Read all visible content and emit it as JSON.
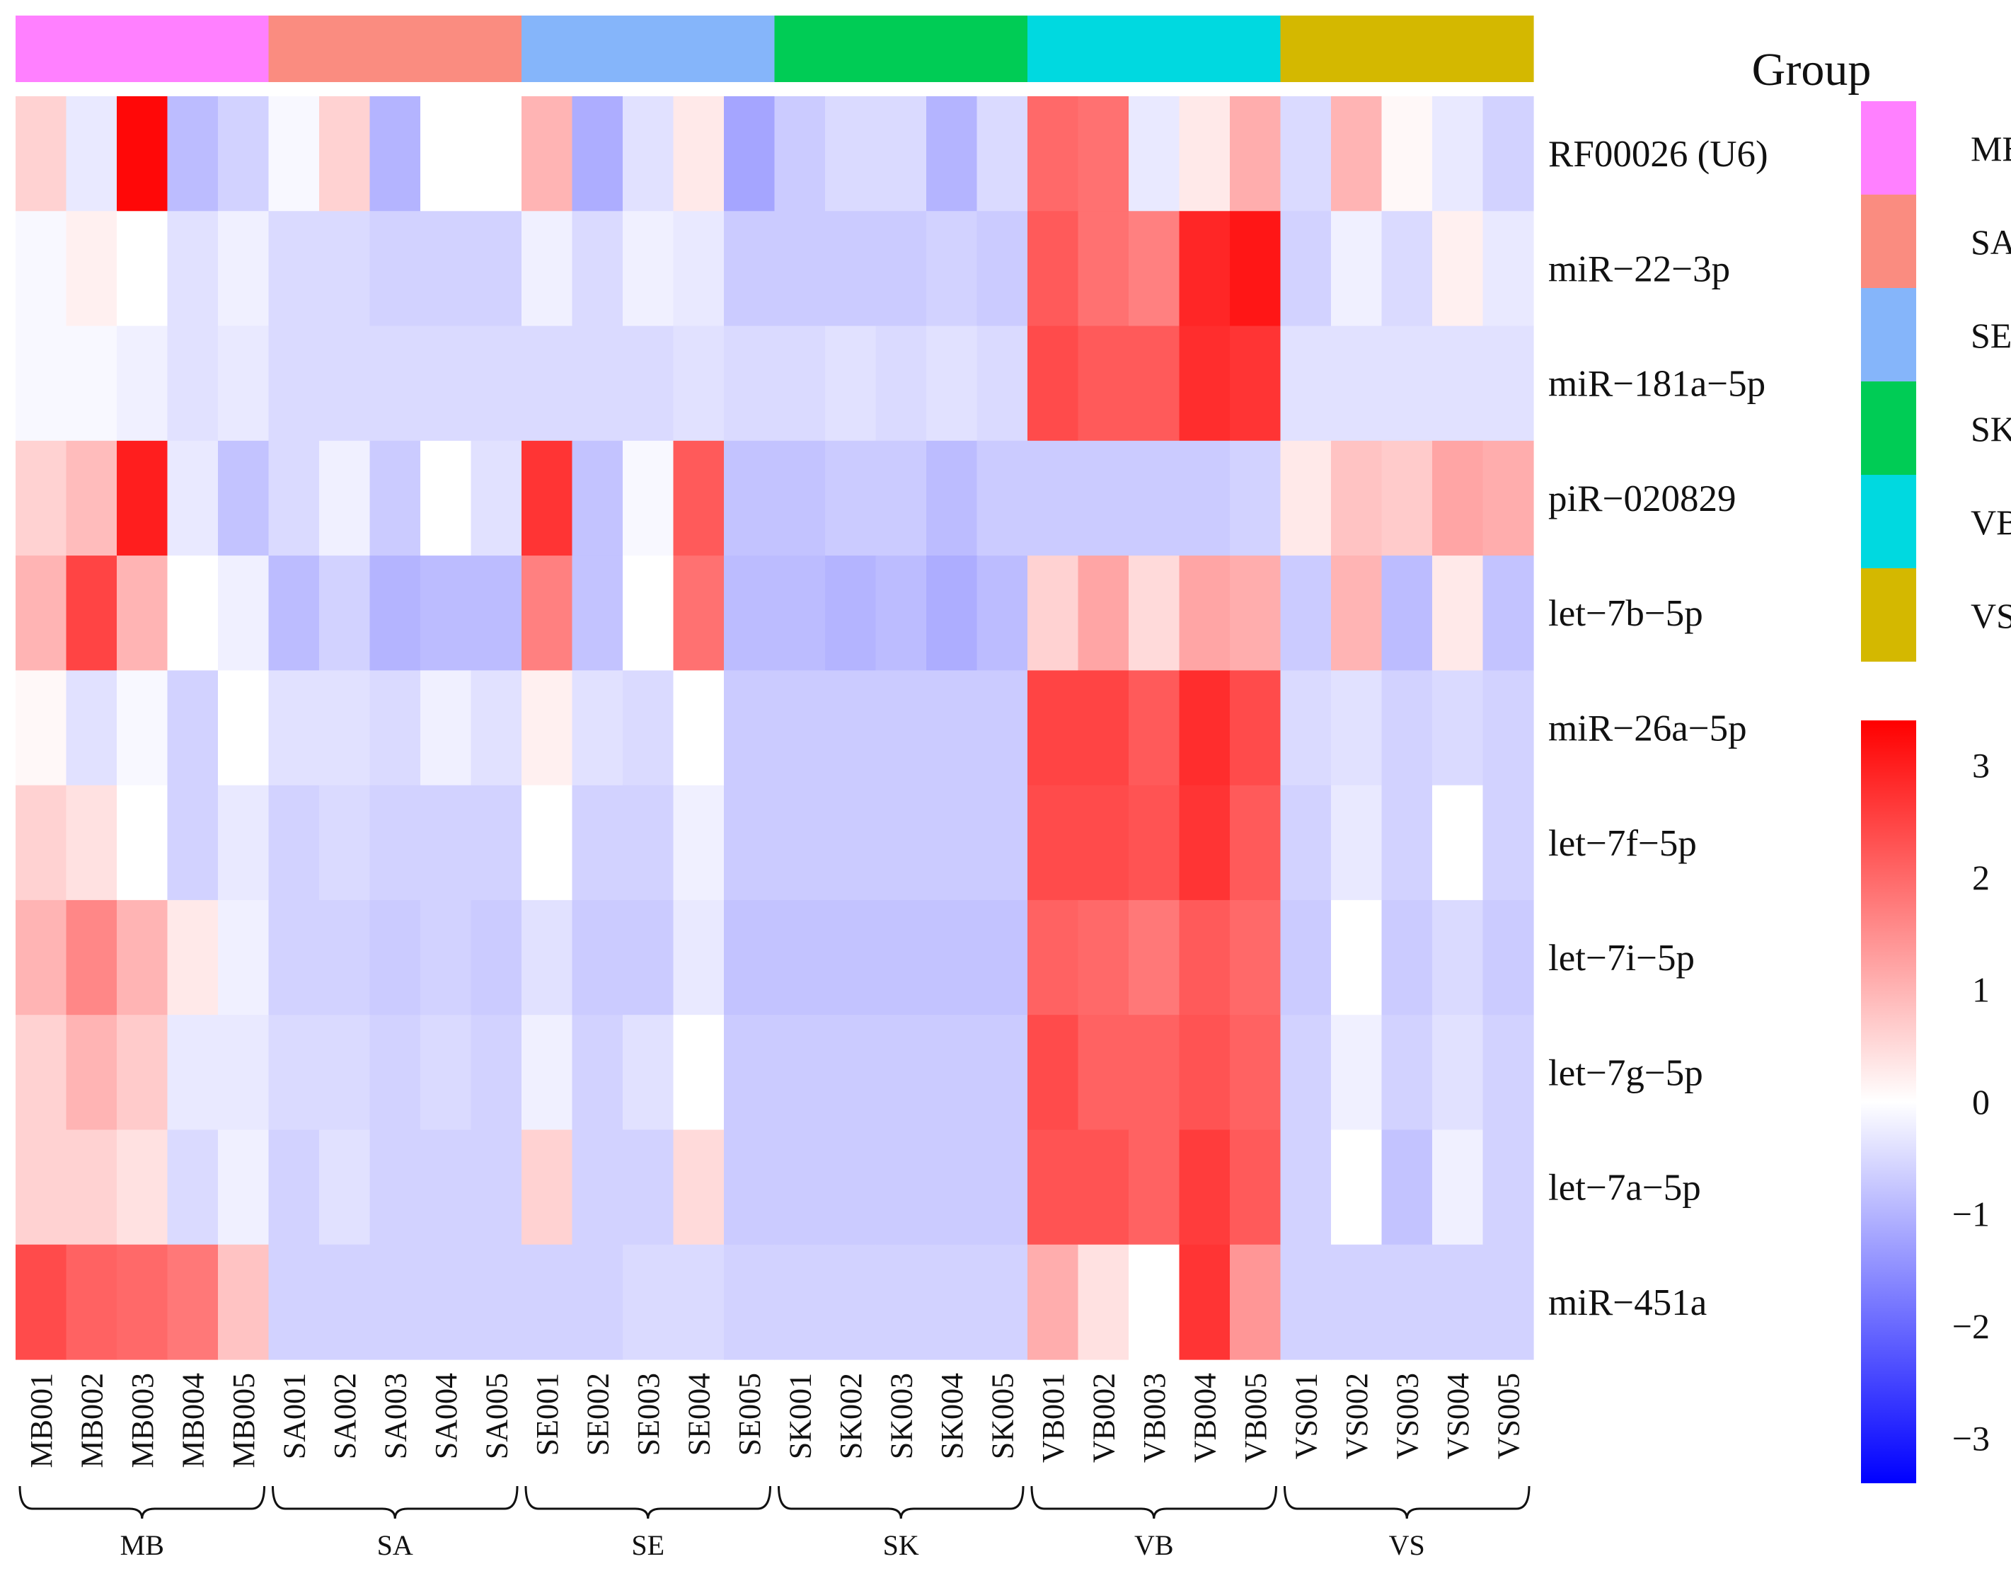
{
  "chart_data": {
    "type": "heatmap",
    "title": "",
    "rows": [
      "RF00026 (U6)",
      "miR−22−3p",
      "miR−181a−5p",
      "piR−020829",
      "let−7b−5p",
      "miR−26a−5p",
      "let−7f−5p",
      "let−7i−5p",
      "let−7g−5p",
      "let−7a−5p",
      "miR−451a"
    ],
    "columns": [
      "MB001",
      "MB002",
      "MB003",
      "MB004",
      "MB005",
      "SA001",
      "SA002",
      "SA003",
      "SA004",
      "SA005",
      "SE001",
      "SE002",
      "SE003",
      "SE004",
      "SE005",
      "SK001",
      "SK002",
      "SK003",
      "SK004",
      "SK005",
      "VB001",
      "VB002",
      "VB003",
      "VB004",
      "VB005",
      "VS001",
      "VS002",
      "VS003",
      "VS004",
      "VS005"
    ],
    "column_groups": [
      "MB",
      "MB",
      "MB",
      "MB",
      "MB",
      "SA",
      "SA",
      "SA",
      "SA",
      "SA",
      "SE",
      "SE",
      "SE",
      "SE",
      "SE",
      "SK",
      "SK",
      "SK",
      "SK",
      "SK",
      "VB",
      "VB",
      "VB",
      "VB",
      "VB",
      "VS",
      "VS",
      "VS",
      "VS",
      "VS"
    ],
    "values": [
      [
        0.6,
        -0.3,
        3.3,
        -0.9,
        -0.6,
        -0.1,
        0.6,
        -1.0,
        0.0,
        0.0,
        1.0,
        -1.1,
        -0.4,
        0.3,
        -1.2,
        -0.7,
        -0.5,
        -0.5,
        -1.0,
        -0.5,
        2.0,
        1.9,
        -0.3,
        0.3,
        1.1,
        -0.5,
        1.0,
        0.1,
        -0.3,
        -0.6
      ],
      [
        -0.1,
        0.2,
        0.0,
        -0.4,
        -0.2,
        -0.5,
        -0.5,
        -0.6,
        -0.6,
        -0.6,
        -0.2,
        -0.5,
        -0.2,
        -0.3,
        -0.7,
        -0.7,
        -0.7,
        -0.7,
        -0.6,
        -0.7,
        2.2,
        1.9,
        1.7,
        2.9,
        3.1,
        -0.6,
        -0.2,
        -0.5,
        0.2,
        -0.3
      ],
      [
        -0.1,
        -0.1,
        -0.2,
        -0.4,
        -0.3,
        -0.5,
        -0.5,
        -0.5,
        -0.5,
        -0.5,
        -0.5,
        -0.5,
        -0.5,
        -0.4,
        -0.5,
        -0.5,
        -0.4,
        -0.5,
        -0.4,
        -0.5,
        2.4,
        2.2,
        2.2,
        2.8,
        2.7,
        -0.4,
        -0.4,
        -0.4,
        -0.4,
        -0.4
      ],
      [
        0.6,
        0.9,
        3.0,
        -0.3,
        -0.8,
        -0.5,
        -0.2,
        -0.7,
        0.0,
        -0.4,
        2.7,
        -0.8,
        -0.1,
        2.2,
        -0.8,
        -0.8,
        -0.7,
        -0.7,
        -0.9,
        -0.7,
        -0.7,
        -0.7,
        -0.7,
        -0.7,
        -0.6,
        0.3,
        0.8,
        0.7,
        1.2,
        1.1
      ],
      [
        1.0,
        2.5,
        1.0,
        0.0,
        -0.2,
        -0.9,
        -0.6,
        -1.0,
        -0.9,
        -0.9,
        1.7,
        -0.8,
        0.0,
        1.9,
        -0.9,
        -0.9,
        -1.0,
        -0.9,
        -1.1,
        -0.9,
        0.6,
        1.2,
        0.5,
        1.2,
        1.1,
        -0.7,
        1.0,
        -0.9,
        0.3,
        -0.8
      ],
      [
        0.1,
        -0.4,
        -0.1,
        -0.6,
        0.0,
        -0.4,
        -0.4,
        -0.5,
        -0.2,
        -0.4,
        0.2,
        -0.4,
        -0.5,
        0.0,
        -0.7,
        -0.7,
        -0.7,
        -0.7,
        -0.7,
        -0.7,
        2.5,
        2.5,
        2.2,
        2.8,
        2.4,
        -0.5,
        -0.4,
        -0.6,
        -0.5,
        -0.6
      ],
      [
        0.6,
        0.4,
        0.0,
        -0.6,
        -0.3,
        -0.6,
        -0.5,
        -0.6,
        -0.6,
        -0.6,
        0.0,
        -0.6,
        -0.6,
        -0.2,
        -0.7,
        -0.7,
        -0.7,
        -0.7,
        -0.7,
        -0.7,
        2.4,
        2.4,
        2.3,
        2.7,
        2.2,
        -0.6,
        -0.3,
        -0.6,
        0.0,
        -0.6
      ],
      [
        1.0,
        1.6,
        1.0,
        0.3,
        -0.2,
        -0.6,
        -0.6,
        -0.7,
        -0.6,
        -0.7,
        -0.4,
        -0.7,
        -0.7,
        -0.3,
        -0.8,
        -0.8,
        -0.8,
        -0.8,
        -0.8,
        -0.8,
        2.1,
        2.0,
        1.8,
        2.2,
        2.0,
        -0.7,
        0.0,
        -0.7,
        -0.5,
        -0.7
      ],
      [
        0.6,
        1.0,
        0.7,
        -0.3,
        -0.3,
        -0.5,
        -0.5,
        -0.6,
        -0.5,
        -0.6,
        -0.2,
        -0.6,
        -0.4,
        0.0,
        -0.7,
        -0.7,
        -0.7,
        -0.7,
        -0.7,
        -0.7,
        2.4,
        2.1,
        2.1,
        2.3,
        2.1,
        -0.6,
        -0.2,
        -0.6,
        -0.4,
        -0.6
      ],
      [
        0.6,
        0.6,
        0.4,
        -0.5,
        -0.2,
        -0.6,
        -0.4,
        -0.6,
        -0.6,
        -0.6,
        0.6,
        -0.6,
        -0.6,
        0.5,
        -0.7,
        -0.7,
        -0.7,
        -0.7,
        -0.7,
        -0.7,
        2.3,
        2.3,
        2.1,
        2.6,
        2.2,
        -0.6,
        0.0,
        -0.8,
        -0.2,
        -0.6
      ],
      [
        2.4,
        2.1,
        2.0,
        1.8,
        0.8,
        -0.6,
        -0.6,
        -0.6,
        -0.6,
        -0.6,
        -0.6,
        -0.6,
        -0.5,
        -0.5,
        -0.6,
        -0.6,
        -0.6,
        -0.6,
        -0.6,
        -0.6,
        1.1,
        0.4,
        0.0,
        2.7,
        1.4,
        -0.6,
        -0.6,
        -0.6,
        -0.6,
        -0.6
      ]
    ],
    "color_scale": {
      "min": -3.4,
      "max": 3.4,
      "ticks": [
        "3",
        "2",
        "1",
        "0",
        "−1",
        "−2",
        "−3"
      ],
      "tick_values": [
        3,
        2,
        1,
        0,
        -1,
        -2,
        -3
      ],
      "low_color": "#0000ff",
      "mid_color": "#ffffff",
      "high_color": "#ff0000"
    },
    "legend": {
      "title": "Group",
      "entries": [
        {
          "name": "MB",
          "color": "#ff80ff"
        },
        {
          "name": "SA",
          "color": "#fa8c80"
        },
        {
          "name": "SE",
          "color": "#85b5fa"
        },
        {
          "name": "SK",
          "color": "#00cc55"
        },
        {
          "name": "VB",
          "color": "#00d9e0"
        },
        {
          "name": "VS",
          "color": "#d4b800"
        }
      ]
    },
    "bracket_labels": [
      "MB",
      "SA",
      "SE",
      "SK",
      "VB",
      "VS"
    ]
  }
}
